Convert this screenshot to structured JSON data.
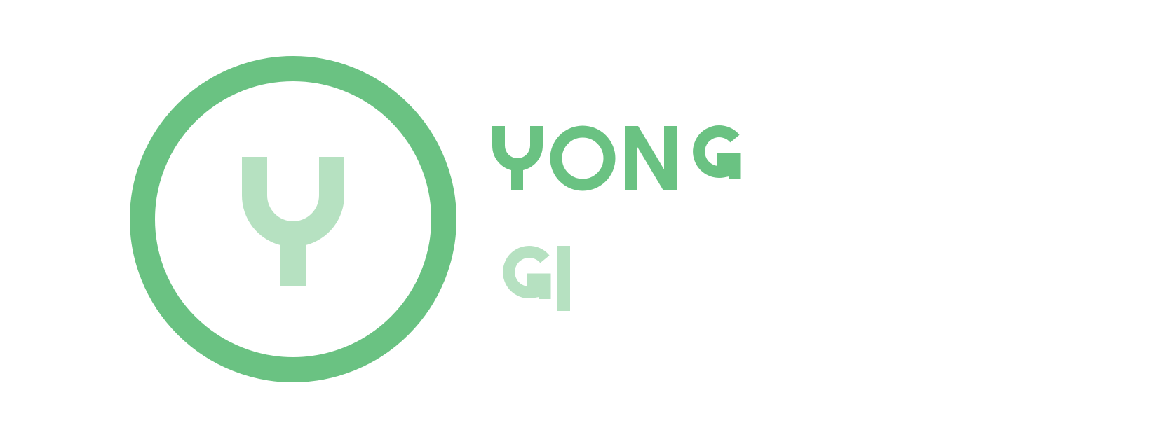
{
  "brand": {
    "name_line_1": "YONG",
    "name_line_2": "GI",
    "emblem_letter": "Y"
  },
  "colors": {
    "primary_green": "#6AC282",
    "light_green": "#B6E1C1",
    "background": "#FFFFFF"
  }
}
